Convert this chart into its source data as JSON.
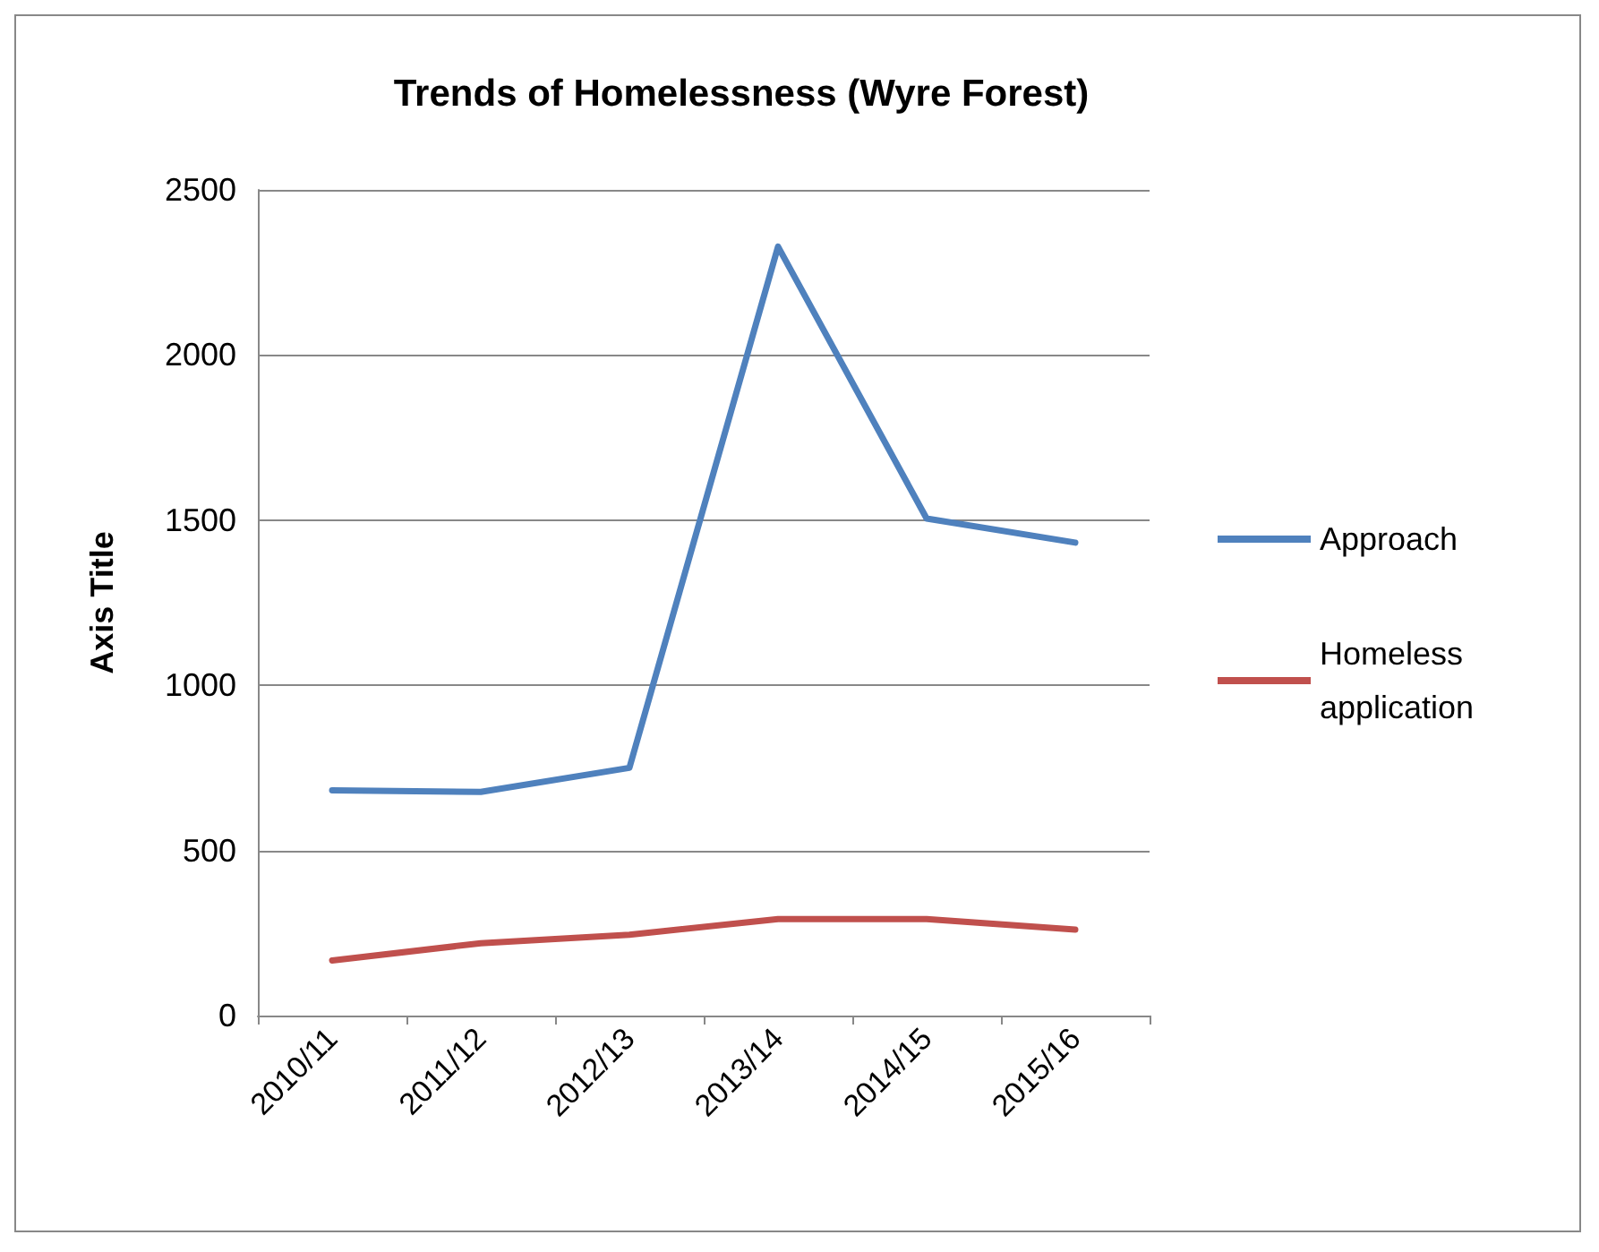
{
  "chart_data": {
    "type": "line",
    "title": "Trends of Homelessness (Wyre Forest)",
    "ylabel": "Axis Title",
    "categories": [
      "2010/11",
      "2011/12",
      "2012/13",
      "2013/14",
      "2014/15",
      "2015/16"
    ],
    "series": [
      {
        "name": "Approach",
        "color": "#4f81bd",
        "values": [
          682,
          677,
          750,
          2328,
          1505,
          1432
        ]
      },
      {
        "name": "Homeless application",
        "color": "#c0504d",
        "values": [
          167,
          219,
          245,
          292,
          292,
          260
        ]
      }
    ],
    "ylim": [
      0,
      2500
    ],
    "yticks": [
      0,
      500,
      1000,
      1500,
      2000,
      2500
    ],
    "grid": "y",
    "legend": "right",
    "marker": "none",
    "line_style": "solid"
  }
}
